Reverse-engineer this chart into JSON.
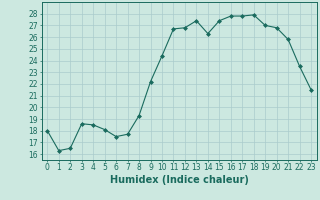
{
  "x": [
    0,
    1,
    2,
    3,
    4,
    5,
    6,
    7,
    8,
    9,
    10,
    11,
    12,
    13,
    14,
    15,
    16,
    17,
    18,
    19,
    20,
    21,
    22,
    23
  ],
  "y": [
    18.0,
    16.3,
    16.5,
    18.6,
    18.5,
    18.1,
    17.5,
    17.7,
    19.3,
    22.2,
    24.4,
    26.7,
    26.8,
    27.4,
    26.3,
    27.4,
    27.8,
    27.8,
    27.9,
    27.0,
    26.8,
    25.8,
    23.5,
    21.5
  ],
  "line_color": "#1a6b5e",
  "marker": "D",
  "marker_size": 2,
  "bg_color": "#cce8e0",
  "grid_color": "#aacccc",
  "xlabel": "Humidex (Indice chaleur)",
  "ylim": [
    15.5,
    29.0
  ],
  "xlim": [
    -0.5,
    23.5
  ],
  "yticks": [
    16,
    17,
    18,
    19,
    20,
    21,
    22,
    23,
    24,
    25,
    26,
    27,
    28
  ],
  "xticks": [
    0,
    1,
    2,
    3,
    4,
    5,
    6,
    7,
    8,
    9,
    10,
    11,
    12,
    13,
    14,
    15,
    16,
    17,
    18,
    19,
    20,
    21,
    22,
    23
  ],
  "label_fontsize": 7,
  "tick_fontsize": 5.5,
  "spine_color": "#1a6b5e"
}
